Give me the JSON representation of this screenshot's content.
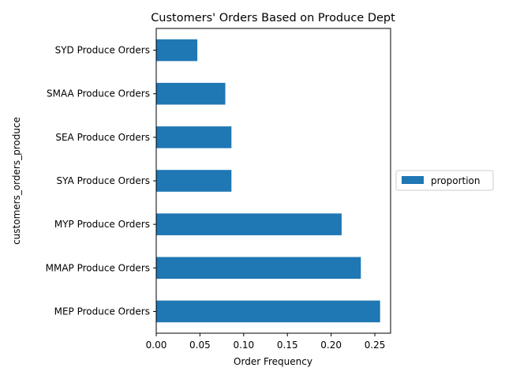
{
  "chart_data": {
    "type": "bar",
    "orientation": "horizontal",
    "title": "Customers' Orders Based on Produce Dept",
    "xlabel": "Order Frequency",
    "ylabel": "customers_orders_produce",
    "categories": [
      "MEP Produce Orders",
      "MMAP Produce Orders",
      "MYP Produce Orders",
      "SYA Produce Orders",
      "SEA Produce Orders",
      "SMAA Produce Orders",
      "SYD Produce Orders"
    ],
    "series": [
      {
        "name": "proportion",
        "values": [
          0.256,
          0.234,
          0.212,
          0.086,
          0.086,
          0.079,
          0.047
        ],
        "color": "#1f77b4"
      }
    ],
    "xlim": [
      0,
      0.268
    ],
    "xticks": [
      0.0,
      0.05,
      0.1,
      0.15,
      0.2,
      0.25
    ],
    "xtick_labels": [
      "0.00",
      "0.05",
      "0.10",
      "0.15",
      "0.20",
      "0.25"
    ],
    "grid": false,
    "legend_position": "center-right"
  }
}
